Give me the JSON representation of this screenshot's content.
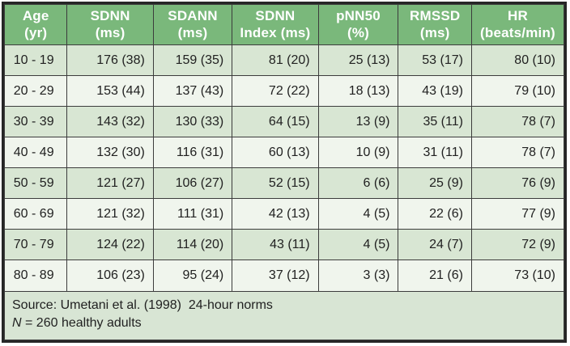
{
  "colors": {
    "header_bg": "#7ab87b",
    "header_text": "#ffffff",
    "row_odd_bg": "#d8e6d3",
    "row_even_bg": "#f0f5ed",
    "footer_bg": "#d8e5d4",
    "border": "#3c3c3c",
    "outer_border": "#262626",
    "cell_text": "#212121"
  },
  "table": {
    "columns": [
      {
        "name": "age",
        "line1": "Age",
        "line2": "(yr)"
      },
      {
        "name": "sdnn",
        "line1": "SDNN",
        "line2": "(ms)"
      },
      {
        "name": "sdann",
        "line1": "SDANN",
        "line2": "(ms)"
      },
      {
        "name": "sdnn-index",
        "line1": "SDNN",
        "line2": "Index (ms)"
      },
      {
        "name": "pnn50",
        "line1": "pNN50",
        "line2": "(%)"
      },
      {
        "name": "rmssd",
        "line1": "RMSSD",
        "line2": "(ms)"
      },
      {
        "name": "hr",
        "line1": "HR",
        "line2": "(beats/min)"
      }
    ],
    "rows": [
      [
        "10 - 19",
        "176 (38)",
        "159 (35)",
        "81 (20)",
        "25 (13)",
        "53 (17)",
        "80 (10)"
      ],
      [
        "20 - 29",
        "153 (44)",
        "137 (43)",
        "72 (22)",
        "18 (13)",
        "43 (19)",
        "79 (10)"
      ],
      [
        "30 - 39",
        "143 (32)",
        "130 (33)",
        "64 (15)",
        "13 (9)",
        "35 (11)",
        "78 (7)"
      ],
      [
        "40 - 49",
        "132 (30)",
        "116 (31)",
        "60 (13)",
        "10 (9)",
        "31 (11)",
        "78 (7)"
      ],
      [
        "50 - 59",
        "121 (27)",
        "106 (27)",
        "52 (15)",
        "6 (6)",
        "25 (9)",
        "76 (9)"
      ],
      [
        "60 - 69",
        "121 (32)",
        "111 (31)",
        "42 (13)",
        "4 (5)",
        "22 (6)",
        "77 (9)"
      ],
      [
        "70 - 79",
        "124 (22)",
        "114 (20)",
        "43 (11)",
        "4 (5)",
        "24 (7)",
        "72 (9)"
      ],
      [
        "80 - 89",
        "106 (23)",
        "95 (24)",
        "37 (12)",
        "3 (3)",
        "21 (6)",
        "73 (10)"
      ]
    ],
    "footer": {
      "line1": "Source: Umetani et al. (1998)  24-hour norms",
      "line2_italic": "N",
      "line2_rest": " = 260 healthy adults"
    }
  }
}
